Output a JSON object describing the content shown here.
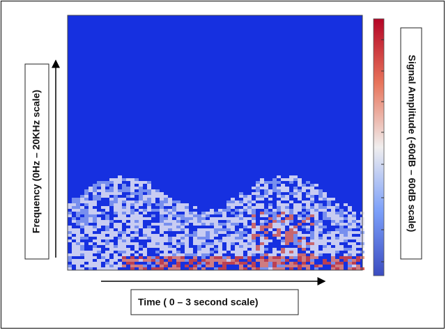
{
  "x_axis_label": "Time ( 0 – 3 second scale)",
  "y_axis_label": "Frequency (0Hz – 20KHz scale)",
  "colorbar_label": "Signal Amplitude (-60dB – 60dB scale)"
}
